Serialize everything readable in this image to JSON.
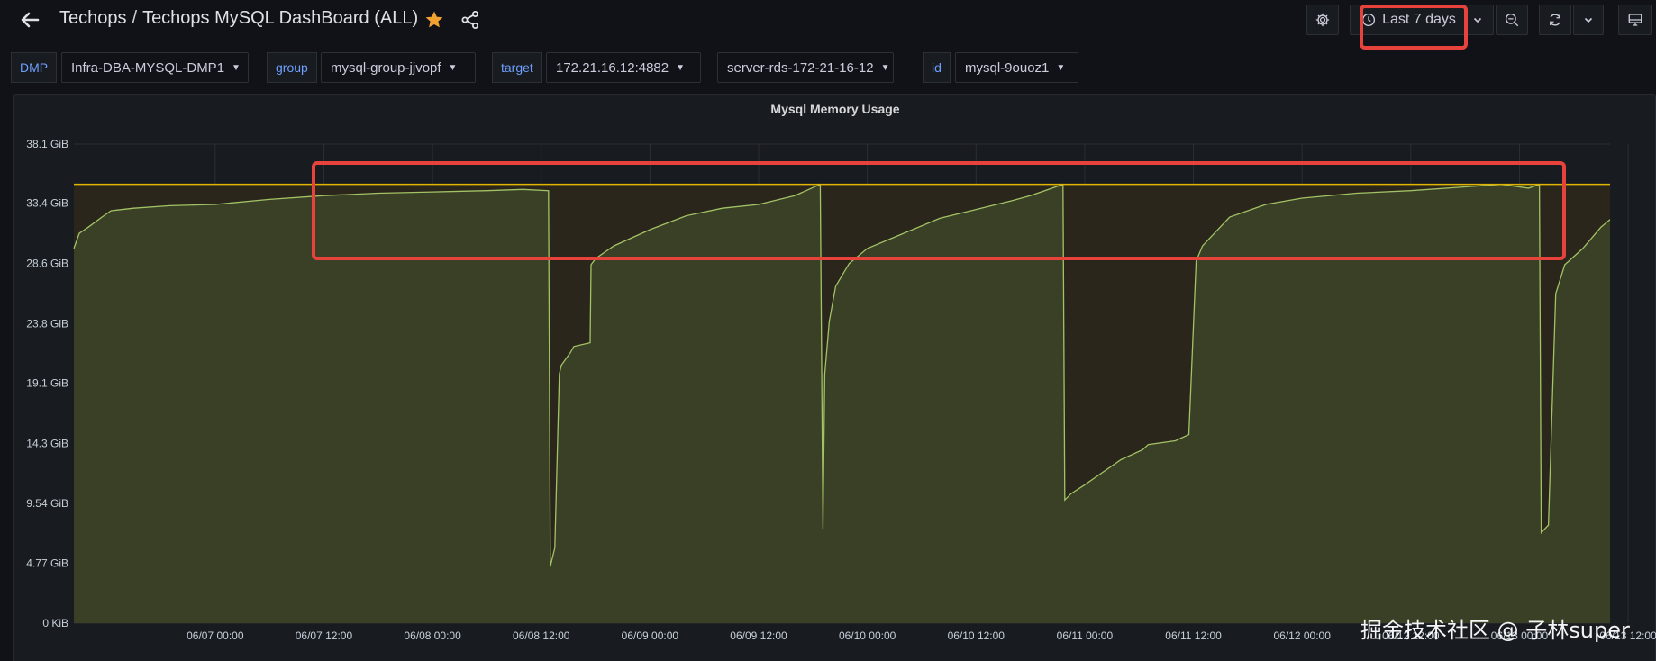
{
  "header": {
    "folder": "Techops",
    "separator": "/",
    "dashboard_title": "Techops MySQL DashBoard (ALL)",
    "time_range_label": "Last 7 days"
  },
  "variables": [
    {
      "label": "DMP",
      "value": "Infra-DBA-MYSQL-DMP1"
    },
    {
      "label": "group",
      "value": "mysql-group-jjvopf"
    },
    {
      "label": "target",
      "value": "172.21.16.12:4882"
    },
    {
      "label": "",
      "value": "server-rds-172-21-16-12"
    },
    {
      "label": "id",
      "value": "mysql-9ouoz1"
    }
  ],
  "colors": {
    "series": "#a3c265",
    "threshold": "#e0b400",
    "annotation": "#e8423c",
    "accent": "#6e9fff",
    "star": "#f2a230"
  },
  "icons": [
    "back-arrow-icon",
    "star-icon",
    "share-icon",
    "gear-icon",
    "clock-icon",
    "chevron-down-icon",
    "zoom-out-icon",
    "refresh-icon",
    "monitor-icon"
  ],
  "watermark": "掘金技术社区 @ 子林super",
  "chart_data": {
    "type": "area",
    "title": "Mysql Memory Usage",
    "y_ticks": [
      "38.1 GiB",
      "33.4 GiB",
      "28.6 GiB",
      "23.8 GiB",
      "19.1 GiB",
      "14.3 GiB",
      "9.54 GiB",
      "4.77 GiB",
      "0 KiB"
    ],
    "y_tick_values": [
      38.1,
      33.4,
      28.6,
      23.8,
      19.1,
      14.3,
      9.54,
      4.77,
      0
    ],
    "ylim": [
      0,
      38.1
    ],
    "x_ticks": [
      "06/07 00:00",
      "06/07 12:00",
      "06/08 00:00",
      "06/08 12:00",
      "06/09 00:00",
      "06/09 12:00",
      "06/10 00:00",
      "06/10 12:00",
      "06/11 00:00",
      "06/11 12:00",
      "06/12 00:00",
      "06/12 12:00",
      "06/13 00:00",
      "06/13 12:00"
    ],
    "x_range_hours": [
      -15.6,
      154.0
    ],
    "threshold": 34.9,
    "grid": true,
    "series": [
      {
        "hours": [
          -15.6,
          -15.0,
          -14.0,
          -12.5,
          -11.5,
          -9.0,
          -5.0,
          0,
          6,
          12,
          18,
          24,
          30,
          34,
          36.8,
          37.0,
          37.5,
          38.0,
          38.2,
          38.7,
          39.2,
          39.6,
          41.4,
          41.5,
          42.0,
          44.0,
          48.0,
          52.0,
          56.0,
          60.0,
          64.0,
          66.8,
          67.1,
          67.3,
          67.8,
          68.5,
          70.0,
          72.0,
          76.0,
          80.0,
          84.0,
          88.0,
          90.0,
          93.6,
          93.8,
          94.5,
          96.0,
          98.0,
          100.0,
          102.4,
          103.0,
          106.0,
          107.5,
          108.3,
          109.0,
          112.0,
          116.0,
          120.0,
          126.0,
          132.0,
          138.0,
          142.0,
          145.0,
          146.2,
          146.4,
          147.2,
          148.0,
          149.0,
          151.0,
          153.0,
          154.0
        ],
        "values": [
          29.8,
          31.0,
          31.5,
          32.3,
          32.8,
          33.0,
          33.2,
          33.3,
          33.7,
          34.0,
          34.2,
          34.3,
          34.4,
          34.5,
          34.4,
          4.5,
          6.0,
          19.8,
          20.5,
          21.0,
          21.5,
          22.0,
          22.3,
          28.5,
          29.0,
          30.0,
          31.3,
          32.4,
          33.0,
          33.3,
          34.0,
          34.9,
          7.5,
          19.8,
          24.0,
          26.8,
          28.6,
          29.8,
          31.0,
          32.2,
          32.9,
          33.6,
          34.0,
          34.9,
          9.8,
          10.3,
          11.0,
          12.0,
          13.0,
          13.8,
          14.2,
          14.5,
          15.0,
          28.8,
          30.0,
          32.3,
          33.3,
          33.8,
          34.2,
          34.4,
          34.7,
          34.9,
          34.6,
          34.9,
          7.2,
          7.8,
          26.2,
          28.5,
          29.8,
          31.5,
          32.1
        ]
      }
    ]
  }
}
